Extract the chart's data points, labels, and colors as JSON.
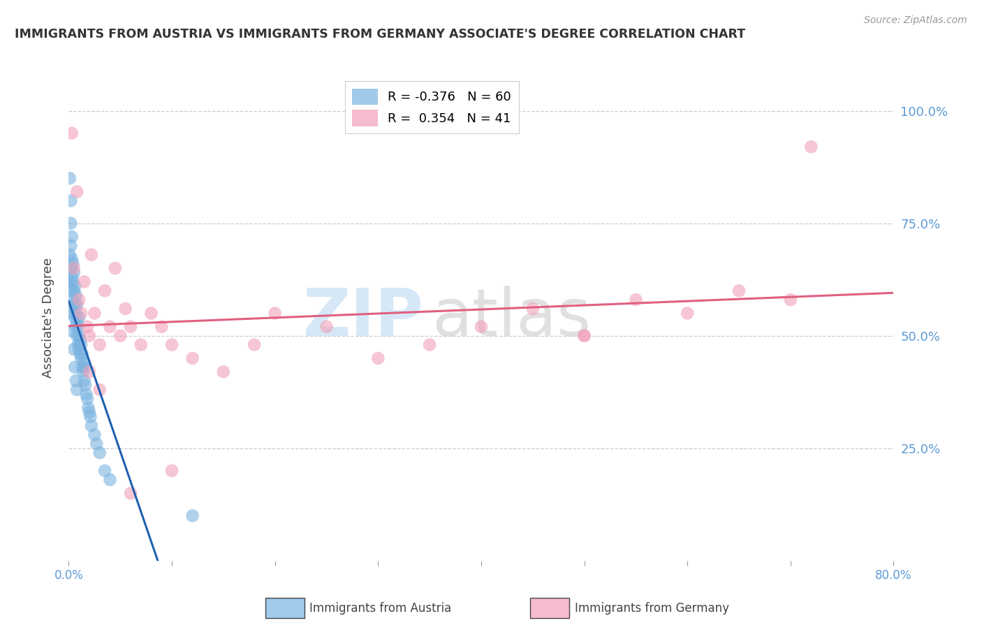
{
  "title": "IMMIGRANTS FROM AUSTRIA VS IMMIGRANTS FROM GERMANY ASSOCIATE'S DEGREE CORRELATION CHART",
  "source": "Source: ZipAtlas.com",
  "ylabel": "Associate's Degree",
  "right_ytick_labels": [
    "100.0%",
    "75.0%",
    "50.0%",
    "25.0%"
  ],
  "right_ytick_positions": [
    1.0,
    0.75,
    0.5,
    0.25
  ],
  "xlim": [
    0.0,
    0.8
  ],
  "ylim": [
    0.0,
    1.08
  ],
  "austria_color": "#7ab3e0",
  "germany_color": "#f0a0b8",
  "austria_line_color": "#2060b0",
  "germany_line_color": "#e06080",
  "austria_dash_color": "#bbbbbb",
  "background_color": "#ffffff",
  "grid_color": "#cccccc",
  "axis_label_color": "#5b9bd5",
  "title_color": "#333333",
  "austria_x": [
    0.001,
    0.001,
    0.002,
    0.002,
    0.002,
    0.003,
    0.003,
    0.003,
    0.003,
    0.004,
    0.004,
    0.004,
    0.005,
    0.005,
    0.005,
    0.006,
    0.006,
    0.006,
    0.007,
    0.007,
    0.007,
    0.008,
    0.008,
    0.008,
    0.009,
    0.009,
    0.01,
    0.01,
    0.01,
    0.011,
    0.011,
    0.012,
    0.012,
    0.013,
    0.013,
    0.014,
    0.015,
    0.015,
    0.016,
    0.017,
    0.018,
    0.019,
    0.02,
    0.021,
    0.022,
    0.025,
    0.027,
    0.03,
    0.035,
    0.04,
    0.001,
    0.002,
    0.003,
    0.004,
    0.005,
    0.006,
    0.007,
    0.008,
    0.015,
    0.12
  ],
  "austria_y": [
    0.62,
    0.68,
    0.65,
    0.7,
    0.75,
    0.6,
    0.63,
    0.67,
    0.72,
    0.58,
    0.62,
    0.66,
    0.56,
    0.6,
    0.64,
    0.54,
    0.57,
    0.61,
    0.52,
    0.55,
    0.59,
    0.5,
    0.53,
    0.57,
    0.48,
    0.52,
    0.47,
    0.5,
    0.54,
    0.46,
    0.49,
    0.45,
    0.48,
    0.43,
    0.46,
    0.42,
    0.4,
    0.44,
    0.39,
    0.37,
    0.36,
    0.34,
    0.33,
    0.32,
    0.3,
    0.28,
    0.26,
    0.24,
    0.2,
    0.18,
    0.85,
    0.8,
    0.55,
    0.51,
    0.47,
    0.43,
    0.4,
    0.38,
    0.43,
    0.1
  ],
  "germany_x": [
    0.003,
    0.005,
    0.008,
    0.01,
    0.012,
    0.015,
    0.018,
    0.02,
    0.022,
    0.025,
    0.03,
    0.035,
    0.04,
    0.045,
    0.05,
    0.055,
    0.06,
    0.07,
    0.08,
    0.09,
    0.1,
    0.12,
    0.15,
    0.18,
    0.2,
    0.25,
    0.3,
    0.35,
    0.4,
    0.45,
    0.5,
    0.55,
    0.6,
    0.65,
    0.7,
    0.72,
    0.02,
    0.03,
    0.06,
    0.1,
    0.5
  ],
  "germany_y": [
    0.95,
    0.65,
    0.82,
    0.58,
    0.55,
    0.62,
    0.52,
    0.5,
    0.68,
    0.55,
    0.48,
    0.6,
    0.52,
    0.65,
    0.5,
    0.56,
    0.52,
    0.48,
    0.55,
    0.52,
    0.48,
    0.45,
    0.42,
    0.48,
    0.55,
    0.52,
    0.45,
    0.48,
    0.52,
    0.56,
    0.5,
    0.58,
    0.55,
    0.6,
    0.58,
    0.92,
    0.42,
    0.38,
    0.15,
    0.2,
    0.5
  ],
  "austria_legend": "R = -0.376   N = 60",
  "germany_legend": "R =  0.354   N = 41",
  "legend_austria_r": "-0.376",
  "legend_austria_n": "60",
  "legend_germany_r": "0.354",
  "legend_germany_n": "41",
  "watermark1": "ZIP",
  "watermark2": "atlas",
  "bottom_label_austria": "Immigrants from Austria",
  "bottom_label_germany": "Immigrants from Germany"
}
